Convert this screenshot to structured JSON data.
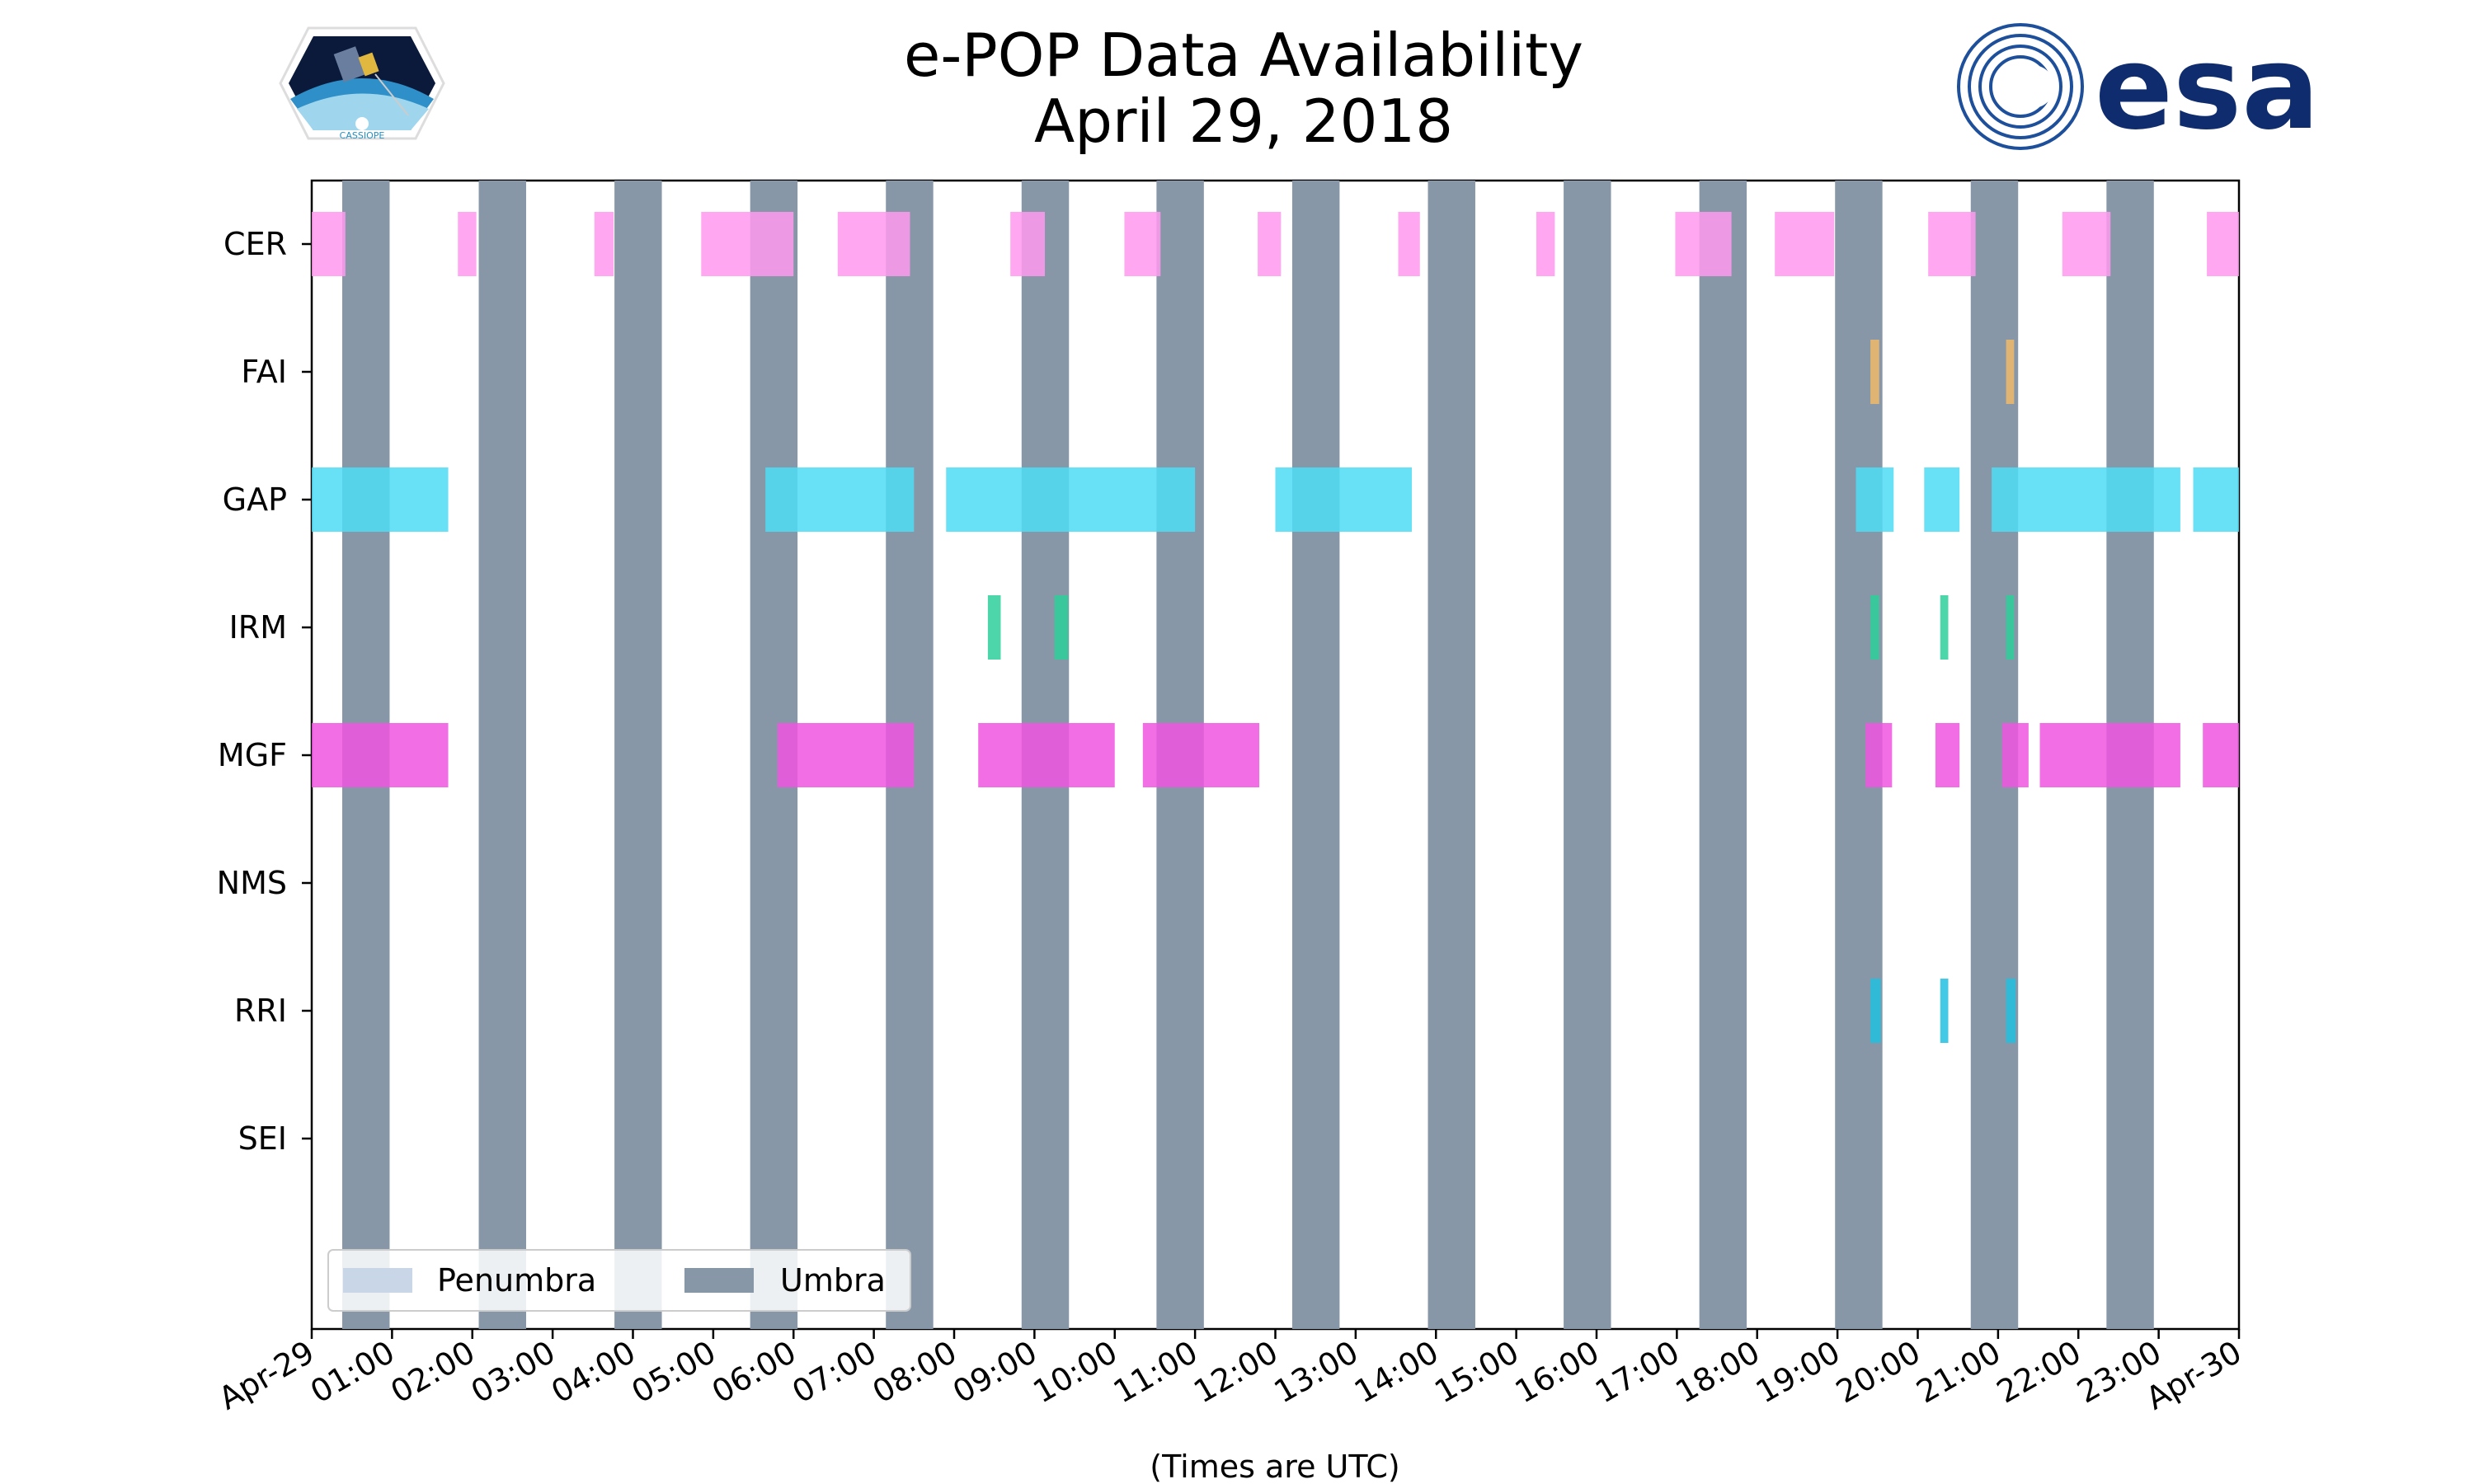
{
  "chart_data": {
    "type": "timeline",
    "title": [
      "e-POP Data Availability",
      "April 29, 2018"
    ],
    "xlabel": "(Times are UTC)",
    "x_range_hours": [
      0,
      24
    ],
    "x_tick_labels": [
      "Apr-29",
      "01:00",
      "02:00",
      "03:00",
      "04:00",
      "05:00",
      "06:00",
      "07:00",
      "08:00",
      "09:00",
      "10:00",
      "11:00",
      "12:00",
      "13:00",
      "14:00",
      "15:00",
      "16:00",
      "17:00",
      "18:00",
      "19:00",
      "20:00",
      "21:00",
      "22:00",
      "23:00",
      "Apr-30"
    ],
    "instruments": [
      "CER",
      "FAI",
      "GAP",
      "IRM",
      "MGF",
      "NMS",
      "RRI",
      "SEI"
    ],
    "umbra_intervals": [
      [
        0.38,
        0.97
      ],
      [
        2.08,
        2.67
      ],
      [
        3.77,
        4.36
      ],
      [
        5.46,
        6.05
      ],
      [
        7.15,
        7.74
      ],
      [
        8.84,
        9.43
      ],
      [
        10.52,
        11.11
      ],
      [
        12.21,
        12.8
      ],
      [
        13.9,
        14.49
      ],
      [
        15.59,
        16.18
      ],
      [
        17.28,
        17.87
      ],
      [
        18.97,
        19.56
      ],
      [
        20.66,
        21.25
      ],
      [
        22.35,
        22.94
      ]
    ],
    "penumbra_intervals": [],
    "legend": {
      "location": "lower-left",
      "entries": [
        {
          "label": "Penumbra",
          "color": "#c8d6e8"
        },
        {
          "label": "Umbra",
          "color": "#8797a8"
        }
      ]
    },
    "series": [
      {
        "name": "CER",
        "color": "#ff99ee",
        "intervals": [
          [
            0.0,
            0.42
          ],
          [
            1.82,
            2.05
          ],
          [
            3.52,
            3.76
          ],
          [
            4.85,
            6.0
          ],
          [
            6.55,
            7.45
          ],
          [
            8.7,
            9.13
          ],
          [
            10.12,
            10.57
          ],
          [
            11.78,
            12.07
          ],
          [
            13.53,
            13.8
          ],
          [
            15.25,
            15.48
          ],
          [
            16.98,
            17.68
          ],
          [
            18.22,
            18.96
          ],
          [
            20.13,
            20.72
          ],
          [
            21.8,
            22.4
          ],
          [
            23.6,
            24.0
          ]
        ]
      },
      {
        "name": "FAI",
        "color": "#f0b868",
        "intervals": [
          [
            19.41,
            19.52
          ],
          [
            21.1,
            21.2
          ]
        ]
      },
      {
        "name": "GAP",
        "color": "#4ddcf5",
        "intervals": [
          [
            0.0,
            1.7
          ],
          [
            5.65,
            7.5
          ],
          [
            7.9,
            11.0
          ],
          [
            12.0,
            13.7
          ],
          [
            19.23,
            19.7
          ],
          [
            20.08,
            20.52
          ],
          [
            20.92,
            23.27
          ],
          [
            23.43,
            24.0
          ]
        ]
      },
      {
        "name": "IRM",
        "color": "#2ecf9a",
        "intervals": [
          [
            8.42,
            8.58
          ],
          [
            9.25,
            9.42
          ],
          [
            19.41,
            19.52
          ],
          [
            20.28,
            20.38
          ],
          [
            21.1,
            21.2
          ]
        ]
      },
      {
        "name": "MGF",
        "color": "#f055e0",
        "intervals": [
          [
            0.0,
            1.7
          ],
          [
            5.8,
            7.5
          ],
          [
            8.3,
            10.0
          ],
          [
            10.35,
            11.8
          ],
          [
            19.35,
            19.68
          ],
          [
            20.22,
            20.52
          ],
          [
            21.05,
            21.38
          ],
          [
            21.52,
            23.27
          ],
          [
            23.55,
            24.0
          ]
        ]
      },
      {
        "name": "NMS",
        "color": "#999999",
        "intervals": []
      },
      {
        "name": "RRI",
        "color": "#22c0e0",
        "intervals": [
          [
            19.41,
            19.54
          ],
          [
            20.28,
            20.38
          ],
          [
            21.1,
            21.22
          ]
        ]
      },
      {
        "name": "SEI",
        "color": "#999999",
        "intervals": []
      }
    ]
  },
  "logos": {
    "left_caption": "CASSIOPE",
    "right_text": "esa"
  }
}
